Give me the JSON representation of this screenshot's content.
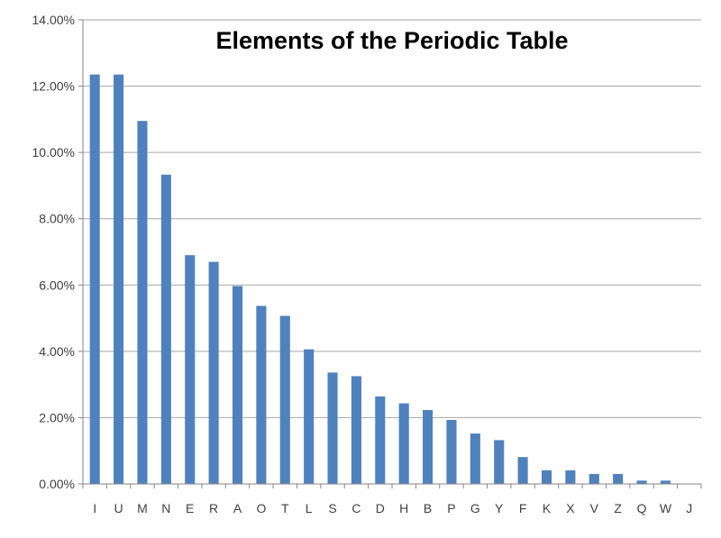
{
  "chart_data": {
    "type": "bar",
    "title": "Elements of the Periodic Table",
    "xlabel": "",
    "ylabel": "",
    "categories": [
      "I",
      "U",
      "M",
      "N",
      "E",
      "R",
      "A",
      "O",
      "T",
      "L",
      "S",
      "C",
      "D",
      "H",
      "B",
      "P",
      "G",
      "Y",
      "F",
      "K",
      "X",
      "V",
      "Z",
      "Q",
      "W",
      "J"
    ],
    "values": [
      12.35,
      12.35,
      10.95,
      9.33,
      6.9,
      6.7,
      5.97,
      5.37,
      5.07,
      4.06,
      3.36,
      3.25,
      2.64,
      2.43,
      2.23,
      1.93,
      1.52,
      1.32,
      0.81,
      0.41,
      0.41,
      0.3,
      0.3,
      0.1,
      0.1,
      0.0
    ],
    "ylim": [
      0,
      14
    ],
    "yticks": [
      0,
      2,
      4,
      6,
      8,
      10,
      12,
      14
    ],
    "ytick_labels": [
      "0.00%",
      "2.00%",
      "4.00%",
      "6.00%",
      "8.00%",
      "10.00%",
      "12.00%",
      "14.00%"
    ],
    "grid": true,
    "legend": "none",
    "bar_color": "#4f81bd",
    "grid_color": "#a6a6a6",
    "axis_color": "#868686",
    "text_color": "#404040"
  }
}
